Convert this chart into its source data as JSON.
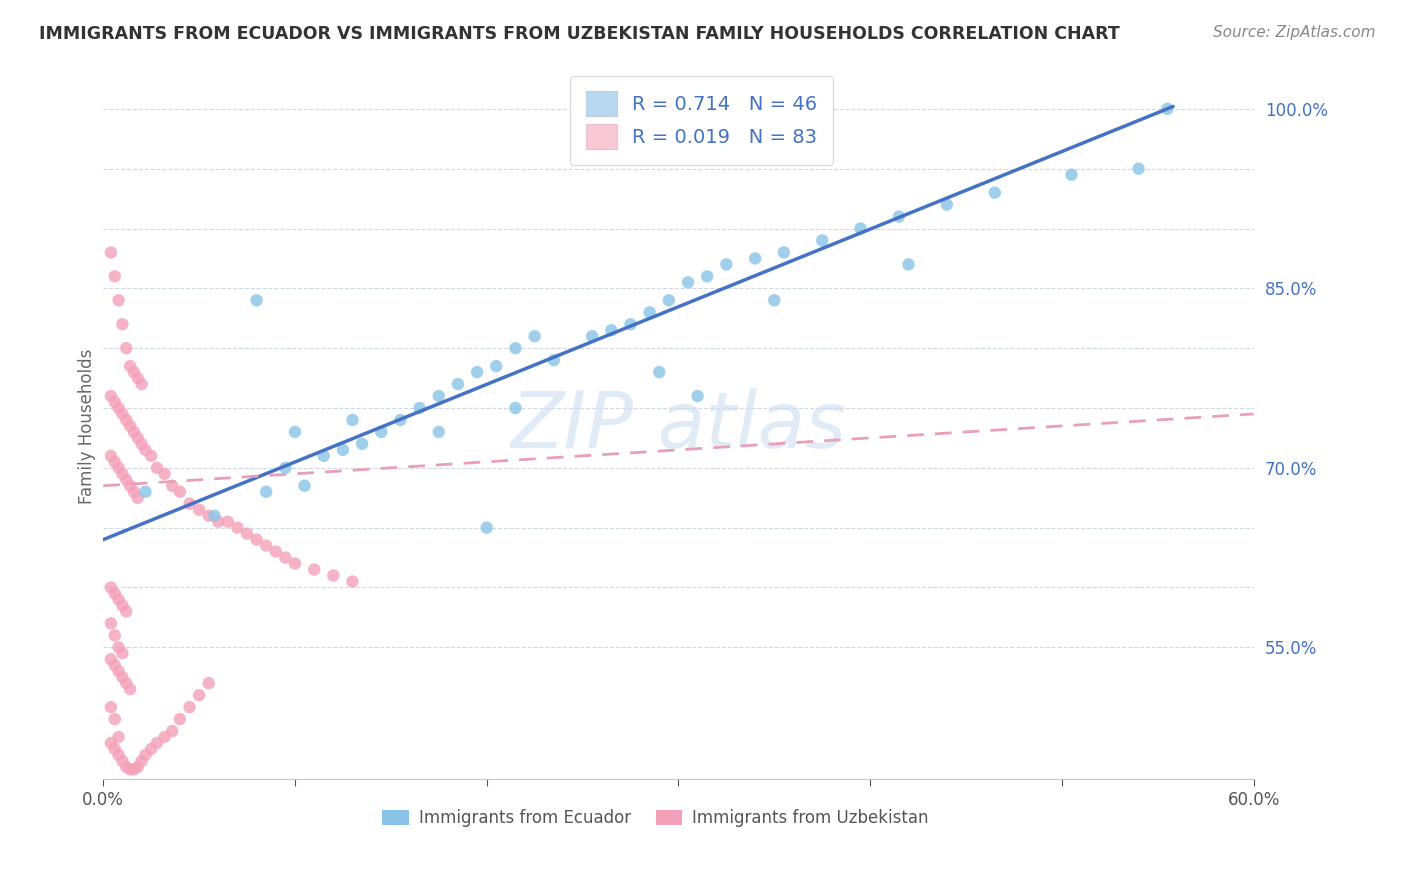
{
  "title": "IMMIGRANTS FROM ECUADOR VS IMMIGRANTS FROM UZBEKISTAN FAMILY HOUSEHOLDS CORRELATION CHART",
  "source": "Source: ZipAtlas.com",
  "ylabel": "Family Households",
  "xlim": [
    0.0,
    0.6
  ],
  "ylim": [
    0.44,
    1.03
  ],
  "xticks": [
    0.0,
    0.1,
    0.2,
    0.3,
    0.4,
    0.5,
    0.6
  ],
  "xticklabels": [
    "0.0%",
    "",
    "",
    "",
    "",
    "",
    "60.0%"
  ],
  "yticks": [
    0.55,
    0.6,
    0.65,
    0.7,
    0.75,
    0.8,
    0.85,
    0.9,
    0.95,
    1.0
  ],
  "yticklabels": [
    "55.0%",
    "",
    "",
    "70.0%",
    "",
    "",
    "85.0%",
    "",
    "",
    "100.0%"
  ],
  "ecuador_dot_color": "#89C4E8",
  "uzbekistan_dot_color": "#F4A0B8",
  "ecuador_line_color": "#4472C4",
  "uzbekistan_line_color": "#E8A0B8",
  "legend_ecuador_color": "#B8D8F0",
  "legend_uzbekistan_color": "#F8C8D4",
  "watermark_color": "#C8DCF0",
  "ecuador_x": [
    0.022,
    0.058,
    0.085,
    0.095,
    0.105,
    0.115,
    0.125,
    0.135,
    0.145,
    0.155,
    0.165,
    0.175,
    0.185,
    0.195,
    0.205,
    0.215,
    0.225,
    0.235,
    0.255,
    0.265,
    0.275,
    0.285,
    0.295,
    0.305,
    0.315,
    0.325,
    0.34,
    0.355,
    0.375,
    0.395,
    0.415,
    0.44,
    0.465,
    0.505,
    0.54,
    0.555,
    0.29,
    0.31,
    0.215,
    0.175,
    0.13,
    0.1,
    0.08,
    0.35,
    0.42,
    0.2
  ],
  "ecuador_y": [
    0.68,
    0.66,
    0.68,
    0.7,
    0.685,
    0.71,
    0.715,
    0.72,
    0.73,
    0.74,
    0.75,
    0.76,
    0.77,
    0.78,
    0.785,
    0.8,
    0.81,
    0.79,
    0.81,
    0.815,
    0.82,
    0.83,
    0.84,
    0.855,
    0.86,
    0.87,
    0.875,
    0.88,
    0.89,
    0.9,
    0.91,
    0.92,
    0.93,
    0.945,
    0.95,
    1.0,
    0.78,
    0.76,
    0.75,
    0.73,
    0.74,
    0.73,
    0.84,
    0.84,
    0.87,
    0.65
  ],
  "ecuador_line_x0": 0.0,
  "ecuador_line_y0": 0.64,
  "ecuador_line_x1": 0.558,
  "ecuador_line_y1": 1.002,
  "uzbekistan_x": [
    0.004,
    0.006,
    0.008,
    0.01,
    0.012,
    0.014,
    0.016,
    0.018,
    0.02,
    0.004,
    0.006,
    0.008,
    0.01,
    0.012,
    0.014,
    0.016,
    0.018,
    0.02,
    0.004,
    0.006,
    0.008,
    0.01,
    0.012,
    0.014,
    0.016,
    0.018,
    0.022,
    0.025,
    0.028,
    0.032,
    0.036,
    0.04,
    0.045,
    0.05,
    0.055,
    0.06,
    0.065,
    0.07,
    0.075,
    0.08,
    0.085,
    0.09,
    0.095,
    0.1,
    0.11,
    0.12,
    0.13,
    0.004,
    0.006,
    0.008,
    0.01,
    0.012,
    0.004,
    0.006,
    0.008,
    0.01,
    0.004,
    0.006,
    0.008,
    0.01,
    0.012,
    0.014,
    0.004,
    0.006,
    0.008,
    0.004,
    0.006,
    0.008,
    0.01,
    0.012,
    0.014,
    0.016,
    0.018,
    0.02,
    0.022,
    0.025,
    0.028,
    0.032,
    0.036,
    0.04,
    0.045,
    0.05,
    0.055
  ],
  "uzbekistan_y": [
    0.88,
    0.86,
    0.84,
    0.82,
    0.8,
    0.785,
    0.78,
    0.775,
    0.77,
    0.76,
    0.755,
    0.75,
    0.745,
    0.74,
    0.735,
    0.73,
    0.725,
    0.72,
    0.71,
    0.705,
    0.7,
    0.695,
    0.69,
    0.685,
    0.68,
    0.675,
    0.715,
    0.71,
    0.7,
    0.695,
    0.685,
    0.68,
    0.67,
    0.665,
    0.66,
    0.655,
    0.655,
    0.65,
    0.645,
    0.64,
    0.635,
    0.63,
    0.625,
    0.62,
    0.615,
    0.61,
    0.605,
    0.6,
    0.595,
    0.59,
    0.585,
    0.58,
    0.57,
    0.56,
    0.55,
    0.545,
    0.54,
    0.535,
    0.53,
    0.525,
    0.52,
    0.515,
    0.5,
    0.49,
    0.475,
    0.47,
    0.465,
    0.46,
    0.455,
    0.45,
    0.448,
    0.448,
    0.45,
    0.455,
    0.46,
    0.465,
    0.47,
    0.475,
    0.48,
    0.49,
    0.5,
    0.51,
    0.52
  ],
  "uzbekistan_line_x0": 0.0,
  "uzbekistan_line_y0": 0.685,
  "uzbekistan_line_x1": 0.6,
  "uzbekistan_line_y1": 0.745
}
